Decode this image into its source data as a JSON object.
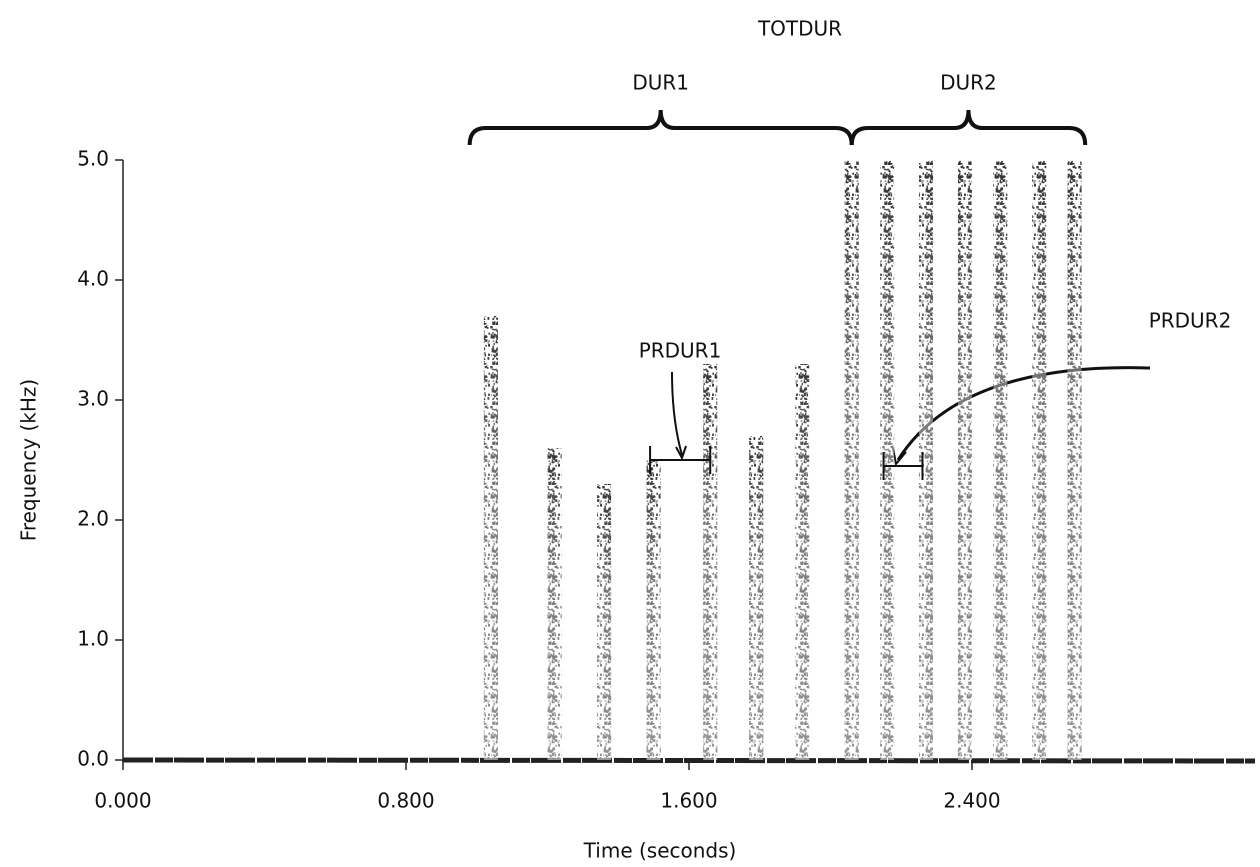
{
  "chart_data": {
    "type": "spectrogram",
    "x_label": "Time (seconds)",
    "y_label": "Frequency (kHz)",
    "xlim": [
      0,
      3.2
    ],
    "ylim": [
      0,
      5
    ],
    "xticks": [
      {
        "value": 0,
        "label": "0.000"
      },
      {
        "value": 0.8,
        "label": "0.800"
      },
      {
        "value": 1.6,
        "label": "1.600"
      },
      {
        "value": 2.4,
        "label": "2.400"
      }
    ],
    "yticks": [
      {
        "value": 0,
        "label": "0.0"
      },
      {
        "value": 1,
        "label": "1.0"
      },
      {
        "value": 2,
        "label": "2.0"
      },
      {
        "value": 3,
        "label": "3.0"
      },
      {
        "value": 4,
        "label": "4.0"
      },
      {
        "value": 5,
        "label": "5.0"
      }
    ],
    "x": [
      1.04,
      1.22,
      1.36,
      1.5,
      1.66,
      1.79,
      1.92,
      2.06,
      2.16,
      2.27,
      2.38,
      2.48,
      2.59,
      2.69
    ],
    "values": [
      3.7,
      2.6,
      2.3,
      2.5,
      3.3,
      2.7,
      3.3,
      5.0,
      5.0,
      5.0,
      5.0,
      5.0,
      5.0,
      5.0
    ],
    "color": "#111111",
    "total_label": "TOTDUR",
    "brackets": [
      {
        "label": "DUR1",
        "x": [
          0.98,
          2.06
        ]
      },
      {
        "label": "DUR2",
        "x": [
          2.06,
          2.72
        ]
      }
    ],
    "intervals": [
      {
        "label": "PRDUR1",
        "x": [
          1.49,
          1.66
        ],
        "y": 2.5
      },
      {
        "label": "PRDUR2",
        "x": [
          2.15,
          2.26
        ],
        "y": 2.45
      }
    ]
  }
}
